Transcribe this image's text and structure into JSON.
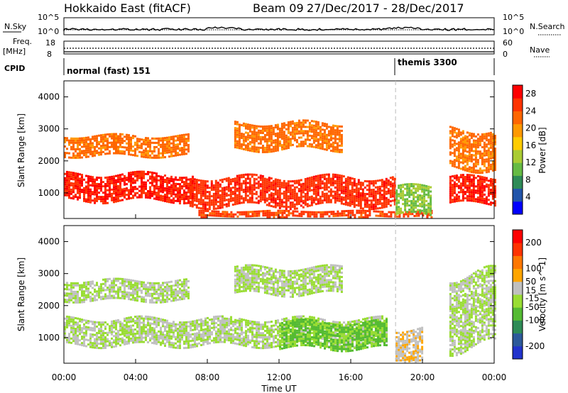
{
  "header": {
    "station": "Hokkaido East (fitACF)",
    "beam": "Beam 09",
    "dates": "27/Dec/2017 - 28/Dec/2017"
  },
  "aux_panels": {
    "nsky_label": "N.Sky",
    "nsearch_label": "N.Search",
    "noise_ticks_left": [
      "10^5",
      "10^0"
    ],
    "noise_ticks_right": [
      "10^5",
      "10^0"
    ],
    "freq_label_line1": "Freq.",
    "freq_label_line2": "[MHz]",
    "freq_ticks": [
      "18",
      "8"
    ],
    "nave_label": "Nave",
    "nave_ticks": [
      "60",
      "0"
    ],
    "cpid_label": "CPID",
    "cpid_segments": [
      "normal (fast) 151",
      "themis 3300"
    ]
  },
  "colors": {
    "power_scale": [
      "#0000ff",
      "#2255aa",
      "#2e8b57",
      "#66bb44",
      "#aacc33",
      "#ffcc00",
      "#ff9900",
      "#ff6600",
      "#ff3300",
      "#ff0000"
    ],
    "velocity_scale": [
      "#2233cc",
      "#2d5a9a",
      "#2e8b57",
      "#55bb33",
      "#99dd33",
      "#c0c0c0",
      "#ffa500",
      "#ff7700",
      "#ff3300",
      "#ff0000"
    ],
    "dashed_marker": "#bbbbbb",
    "trace": "#000000"
  },
  "chart_data": [
    {
      "type": "heatmap",
      "name": "Power",
      "ylabel": "Slant Range [km]",
      "yticks": [
        "1000",
        "2000",
        "3000",
        "4000"
      ],
      "ylim": [
        200,
        4500
      ],
      "colorbar_label": "Power [dB]",
      "colorbar_ticks": [
        "28",
        "24",
        "20",
        "16",
        "12",
        "8",
        "4"
      ],
      "colorbar_range": [
        0,
        30
      ],
      "features": [
        {
          "t": [
            0.0,
            7.2
          ],
          "range": [
            800,
            1600
          ],
          "value": 27
        },
        {
          "t": [
            0.0,
            7.0
          ],
          "range": [
            2200,
            2800
          ],
          "value": 22
        },
        {
          "t": [
            7.0,
            18.5
          ],
          "range": [
            600,
            1500
          ],
          "value": 26
        },
        {
          "t": [
            9.5,
            15.5
          ],
          "range": [
            2400,
            3200
          ],
          "value": 22
        },
        {
          "t": [
            7.5,
            20.5
          ],
          "range": [
            250,
            450
          ],
          "value": 25
        },
        {
          "t": [
            18.5,
            20.5
          ],
          "range": [
            300,
            1200
          ],
          "value": 12
        },
        {
          "t": [
            21.5,
            24.0
          ],
          "range": [
            700,
            1500
          ],
          "value": 27
        },
        {
          "t": [
            21.5,
            24.0
          ],
          "range": [
            1800,
            3000
          ],
          "value": 22
        }
      ]
    },
    {
      "type": "heatmap",
      "name": "Velocity",
      "ylabel": "Slant Range [km]",
      "yticks": [
        "1000",
        "2000",
        "3000",
        "4000"
      ],
      "ylim": [
        200,
        4500
      ],
      "xlabel": "Time UT",
      "xticks": [
        "00:00",
        "04:00",
        "08:00",
        "12:00",
        "16:00",
        "20:00",
        "00:00"
      ],
      "xlim": [
        0,
        24
      ],
      "colorbar_label": "Velocity [m s^-1]",
      "colorbar_ticks": [
        "200",
        "100",
        "50",
        "15",
        "-15",
        "-50",
        "-100",
        "-200"
      ],
      "colorbar_range": [
        -250,
        250
      ],
      "features": [
        {
          "t": [
            0.0,
            18.0
          ],
          "range": [
            800,
            1600
          ],
          "value": 0
        },
        {
          "t": [
            0.0,
            7.0
          ],
          "range": [
            2200,
            2800
          ],
          "value": 0
        },
        {
          "t": [
            9.5,
            15.5
          ],
          "range": [
            2400,
            3200
          ],
          "value": 0
        },
        {
          "t": [
            12.0,
            18.0
          ],
          "range": [
            700,
            1500
          ],
          "value": -60
        },
        {
          "t": [
            18.5,
            20.0
          ],
          "range": [
            300,
            1300
          ],
          "value": 40
        },
        {
          "t": [
            21.5,
            24.0
          ],
          "range": [
            700,
            3000
          ],
          "value": 0
        }
      ]
    }
  ],
  "cursor_time": 18.5
}
